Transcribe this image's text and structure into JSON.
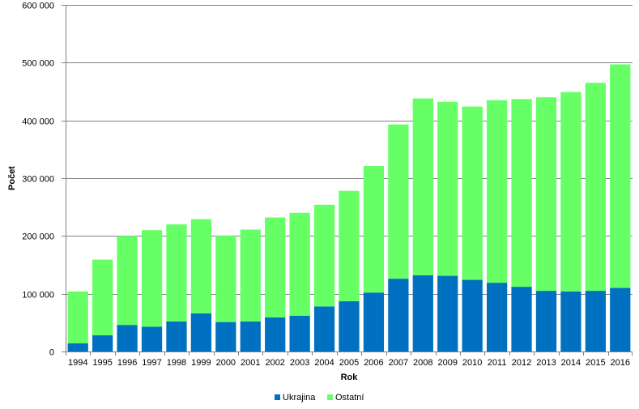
{
  "chart_data": {
    "type": "bar",
    "stacked": true,
    "xlabel": "Rok",
    "ylabel": "Počet",
    "ylim": [
      0,
      600000
    ],
    "yticks": [
      0,
      100000,
      200000,
      300000,
      400000,
      500000,
      600000
    ],
    "ytick_labels": [
      "0",
      "100 000",
      "200 000",
      "300 000",
      "400 000",
      "500 000",
      "600 000"
    ],
    "grid": true,
    "legend_position": "bottom",
    "categories": [
      "1994",
      "1995",
      "1996",
      "1997",
      "1998",
      "1999",
      "2000",
      "2001",
      "2002",
      "2003",
      "2004",
      "2005",
      "2006",
      "2007",
      "2008",
      "2009",
      "2010",
      "2011",
      "2012",
      "2013",
      "2014",
      "2015",
      "2016"
    ],
    "series": [
      {
        "name": "Ukrajina",
        "color": "#0070C0",
        "values": [
          14000,
          28000,
          46000,
          43000,
          52000,
          66000,
          51000,
          52000,
          59000,
          62000,
          78000,
          87000,
          102000,
          126000,
          132000,
          131000,
          124000,
          119000,
          112000,
          105000,
          104000,
          105000,
          110000
        ]
      },
      {
        "name": "Ostatní",
        "color": "#66FF66",
        "values": [
          90000,
          131000,
          154000,
          167000,
          168000,
          163000,
          150000,
          159000,
          173000,
          178000,
          176000,
          191000,
          219000,
          267000,
          306000,
          301000,
          300000,
          316000,
          325000,
          335000,
          345000,
          360000,
          387000
        ]
      }
    ]
  }
}
